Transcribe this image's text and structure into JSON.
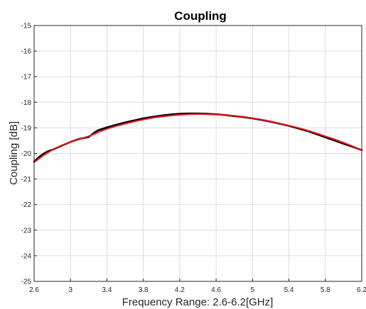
{
  "chart_data": {
    "type": "line",
    "title": "Coupling",
    "xlabel": "Frequency Range: 2.6-6.2[GHz]",
    "ylabel": "Coupling [dB]",
    "xlim": [
      2.6,
      6.2
    ],
    "ylim": [
      -25,
      -15
    ],
    "xticks": [
      "2.6",
      "3",
      "3.4",
      "3.8",
      "4.2",
      "4.6",
      "5",
      "5.4",
      "5.8",
      "6.2"
    ],
    "yticks": [
      "-15",
      "-16",
      "-17",
      "-18",
      "-19",
      "-20",
      "-21",
      "-22",
      "-23",
      "-24",
      "-25"
    ],
    "grid": true,
    "series": [
      {
        "color": "#000000",
        "x": [
          2.6,
          2.65,
          2.7,
          2.75,
          2.8,
          2.9,
          3.0,
          3.1,
          3.2,
          3.25,
          3.3,
          3.4,
          3.5,
          3.6,
          3.7,
          3.8,
          3.9,
          4.0,
          4.1,
          4.2,
          4.3,
          4.4,
          4.5,
          4.6,
          4.7,
          4.8,
          4.9,
          5.0,
          5.1,
          5.2,
          5.3,
          5.4,
          5.5,
          5.6,
          5.7,
          5.8,
          5.9,
          6.0,
          6.1,
          6.2
        ],
        "y": [
          -20.32,
          -20.15,
          -20.02,
          -19.92,
          -19.86,
          -19.7,
          -19.55,
          -19.43,
          -19.36,
          -19.22,
          -19.1,
          -18.98,
          -18.88,
          -18.79,
          -18.71,
          -18.63,
          -18.57,
          -18.52,
          -18.48,
          -18.45,
          -18.44,
          -18.44,
          -18.45,
          -18.47,
          -18.5,
          -18.54,
          -18.58,
          -18.63,
          -18.69,
          -18.76,
          -18.84,
          -18.92,
          -19.02,
          -19.12,
          -19.24,
          -19.37,
          -19.49,
          -19.62,
          -19.74,
          -19.87
        ]
      },
      {
        "color": "#e8141c",
        "x": [
          2.6,
          2.7,
          2.8,
          2.9,
          3.0,
          3.1,
          3.2,
          3.3,
          3.4,
          3.5,
          3.6,
          3.7,
          3.8,
          3.9,
          4.0,
          4.1,
          4.2,
          4.3,
          4.4,
          4.5,
          4.6,
          4.7,
          4.8,
          4.9,
          5.0,
          5.1,
          5.2,
          5.3,
          5.4,
          5.5,
          5.6,
          5.7,
          5.8,
          5.9,
          6.0,
          6.1,
          6.2
        ],
        "y": [
          -20.35,
          -20.08,
          -19.86,
          -19.69,
          -19.55,
          -19.44,
          -19.33,
          -19.18,
          -19.04,
          -18.93,
          -18.84,
          -18.75,
          -18.68,
          -18.61,
          -18.56,
          -18.52,
          -18.49,
          -18.47,
          -18.46,
          -18.47,
          -18.48,
          -18.5,
          -18.53,
          -18.57,
          -18.62,
          -18.68,
          -18.75,
          -18.83,
          -18.91,
          -19.0,
          -19.1,
          -19.21,
          -19.33,
          -19.45,
          -19.58,
          -19.72,
          -19.87
        ]
      }
    ]
  }
}
